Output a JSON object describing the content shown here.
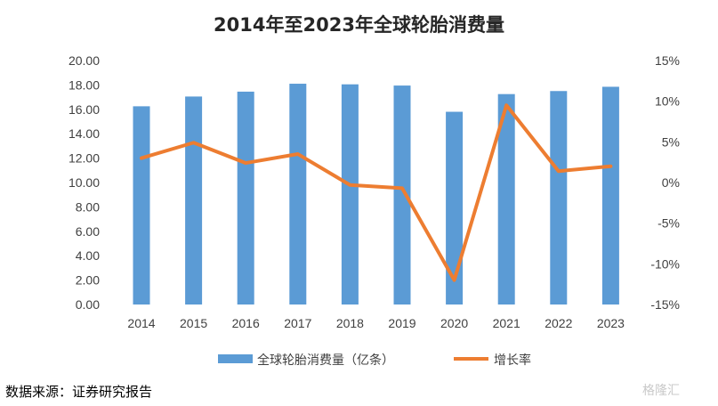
{
  "chart_data": {
    "type": "bar",
    "title": "2014年至2023年全球轮胎消费量",
    "categories": [
      "2014",
      "2015",
      "2016",
      "2017",
      "2018",
      "2019",
      "2020",
      "2021",
      "2022",
      "2023"
    ],
    "series": [
      {
        "name": "全球轮胎消费量（亿条）",
        "type": "bar",
        "axis": "left",
        "color": "#5b9bd5",
        "values": [
          16.25,
          17.05,
          17.45,
          18.1,
          18.05,
          17.95,
          15.8,
          17.25,
          17.5,
          17.85
        ]
      },
      {
        "name": "增长率",
        "type": "line",
        "axis": "right",
        "color": "#ed7d31",
        "values": [
          3.0,
          4.9,
          2.4,
          3.5,
          -0.3,
          -0.7,
          -12.0,
          9.5,
          1.4,
          2.0
        ]
      }
    ],
    "left_axis": {
      "ylim": [
        0,
        20
      ],
      "tick_labels": [
        "0.00",
        "2.00",
        "4.00",
        "6.00",
        "8.00",
        "10.00",
        "12.00",
        "14.00",
        "16.00",
        "18.00",
        "20.00"
      ]
    },
    "right_axis": {
      "ylim": [
        -15,
        15
      ],
      "tick_labels": [
        "-15%",
        "-10%",
        "-5%",
        "0%",
        "5%",
        "10%",
        "15%"
      ]
    },
    "grid": false,
    "legend_position": "bottom"
  },
  "footer": {
    "source": "数据来源：证券研究报告",
    "watermark": "格隆汇"
  }
}
